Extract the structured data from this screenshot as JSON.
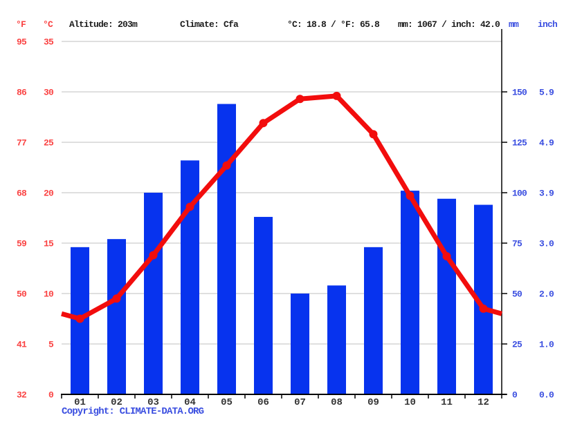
{
  "header": {
    "f_unit": "°F",
    "c_unit": "°C",
    "altitude": "Altitude: 203m",
    "climate": "Climate: Cfa",
    "temp_summary": "°C: 18.8 / °F: 65.8",
    "precip_summary": "mm: 1067 / inch: 42.0",
    "mm_unit": "mm",
    "inch_unit": "inch"
  },
  "footer": {
    "copyright_label": "Copyright:",
    "copyright_link": "CLIMATE-DATA.ORG"
  },
  "colors": {
    "bar_blue": "#0733ee",
    "line_red": "#f20d0d",
    "red_label": "#fa4343",
    "blue_label": "#3a4ee0",
    "black_text": "#1c1c1c",
    "month_text": "#333333",
    "gridline": "#cccccc",
    "axis": "#000000"
  },
  "chart_data": {
    "type": "bar",
    "title": "Climate graph (precipitation bars + temperature line)",
    "categories": [
      "01",
      "02",
      "03",
      "04",
      "05",
      "06",
      "07",
      "08",
      "09",
      "10",
      "11",
      "12"
    ],
    "series": [
      {
        "name": "precipitation",
        "type": "bar",
        "unit": "mm",
        "values": [
          73,
          77,
          100,
          116,
          144,
          88,
          50,
          54,
          73,
          101,
          97,
          94
        ],
        "annual_total_mm": 1067
      },
      {
        "name": "temperature",
        "type": "line",
        "unit": "°C",
        "values": [
          7.5,
          9.5,
          13.8,
          18.6,
          22.7,
          26.9,
          29.3,
          29.6,
          25.8,
          19.7,
          13.7,
          8.5
        ],
        "edge_value": 8.0,
        "annual_mean_c": 18.8
      }
    ],
    "left_axis": {
      "f_labels": [
        "95",
        "86",
        "77",
        "68",
        "59",
        "50",
        "41",
        "32"
      ],
      "c_labels": [
        "35",
        "30",
        "25",
        "20",
        "15",
        "10",
        "5",
        "0"
      ]
    },
    "right_axis": {
      "mm_labels": [
        "150",
        "125",
        "100",
        "75",
        "50",
        "25",
        "0"
      ],
      "inch_labels": [
        "5.9",
        "4.9",
        "3.9",
        "3.0",
        "2.0",
        "1.0",
        "0.0"
      ]
    },
    "ylim_c": [
      0,
      35
    ],
    "ylim_mm": [
      0,
      175
    ],
    "mm_per_c": 5,
    "grid": true,
    "legend": "none"
  }
}
